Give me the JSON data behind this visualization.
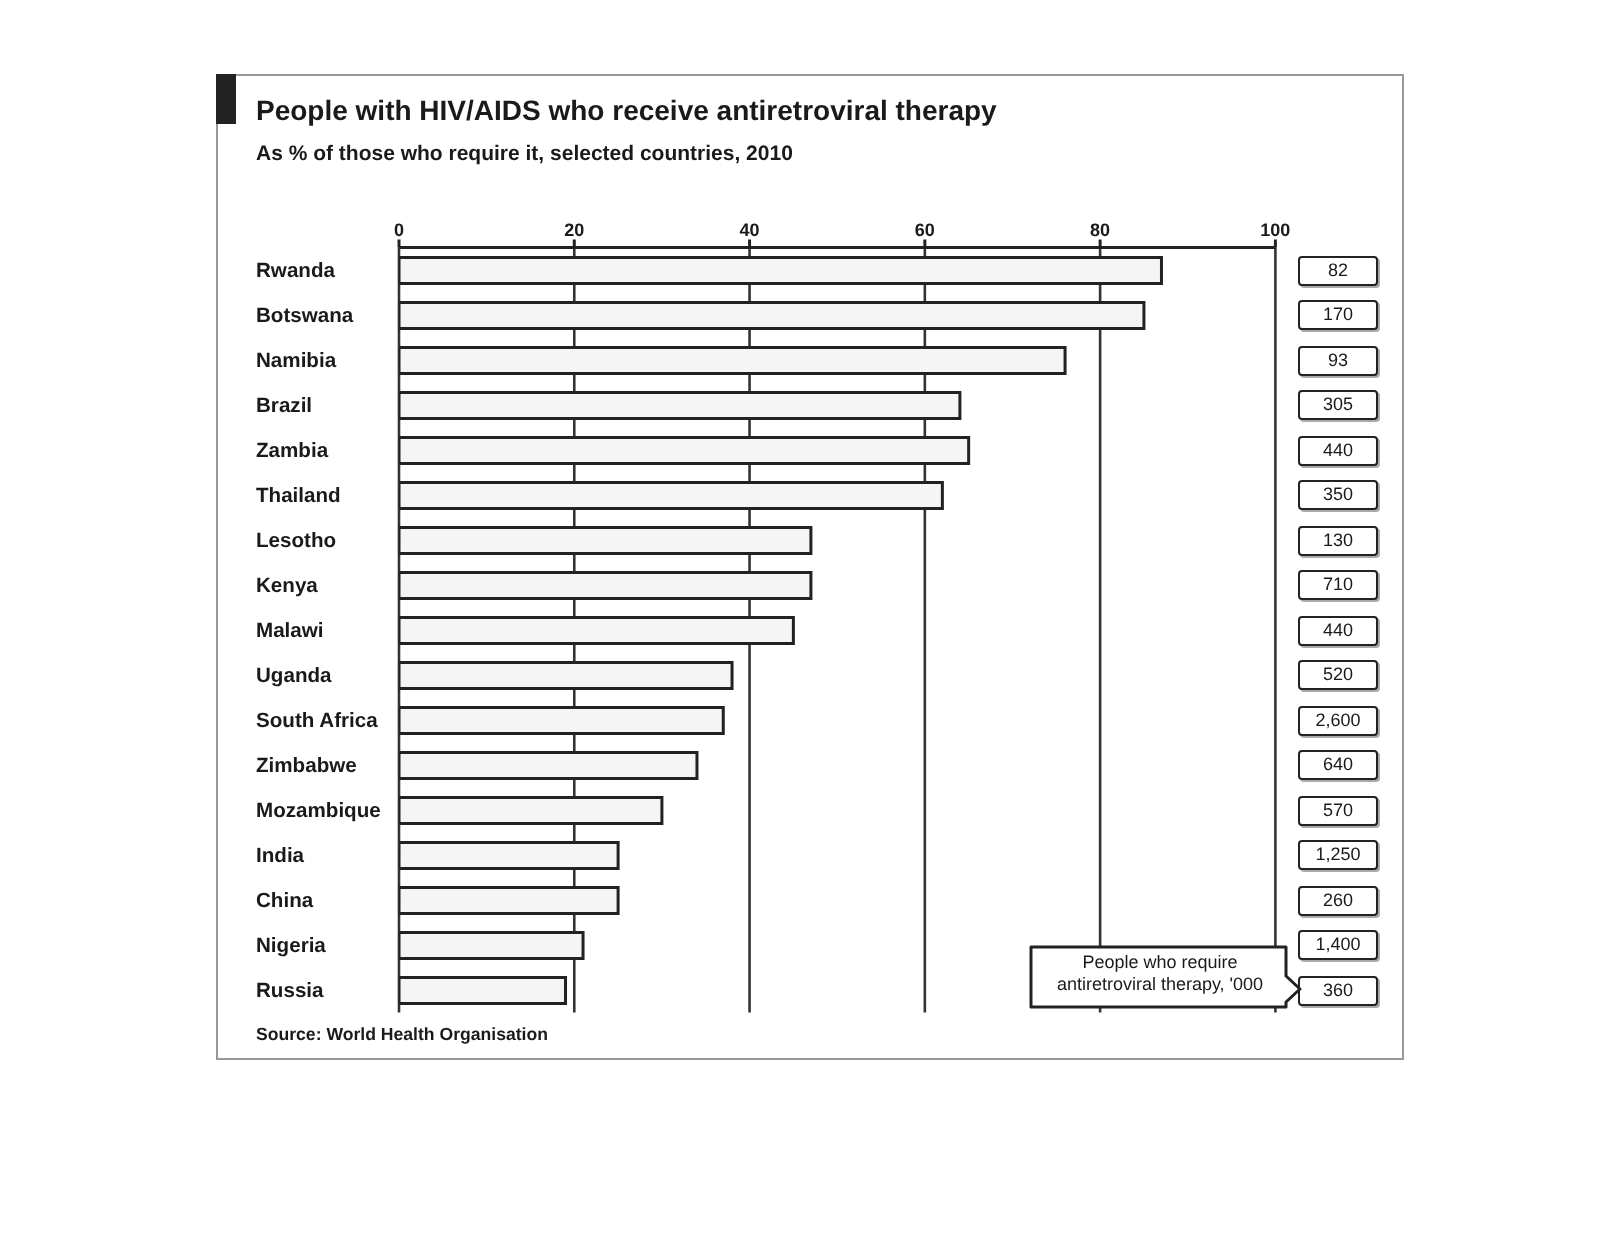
{
  "chart_data": [
    {
      "type": "bar",
      "orientation": "horizontal",
      "title": "People with HIV/AIDS who receive antiretroviral therapy",
      "subtitle": "As % of those who require it, selected countries, 2010",
      "categories": [
        "Rwanda",
        "Botswana",
        "Namibia",
        "Brazil",
        "Zambia",
        "Thailand",
        "Lesotho",
        "Kenya",
        "Malawi",
        "Uganda",
        "South Africa",
        "Zimbabwe",
        "Mozambique",
        "India",
        "China",
        "Nigeria",
        "Russia"
      ],
      "series": [
        {
          "color": "#f5f5f5",
          "values": [
            87,
            85,
            76,
            64,
            65,
            62,
            47,
            47,
            45,
            38,
            37,
            34,
            30,
            25,
            25,
            21,
            19
          ]
        }
      ],
      "xlim": [
        0,
        100
      ],
      "xticks": [
        0,
        20,
        40,
        60,
        80,
        100
      ],
      "grid": "x",
      "annotations": [
        "Source: World Health Organisation"
      ]
    },
    {
      "type": "other",
      "categories": [
        null,
        null,
        null,
        null,
        null,
        null,
        null,
        null,
        null,
        null,
        null,
        null,
        null,
        null,
        null,
        null,
        null
      ],
      "series": [
        {
          "name": "People who require antiretroviral therapy, '000",
          "values": [
            82,
            170,
            93,
            305,
            440,
            350,
            130,
            710,
            440,
            520,
            2600,
            640,
            570,
            1250,
            260,
            1400,
            360
          ],
          "value_labels": [
            "82",
            "170",
            "93",
            "305",
            "440",
            "350",
            "130",
            "710",
            "440",
            "520",
            "2,600",
            "640",
            "570",
            "1,250",
            "260",
            "1,400",
            "360"
          ]
        }
      ]
    }
  ]
}
